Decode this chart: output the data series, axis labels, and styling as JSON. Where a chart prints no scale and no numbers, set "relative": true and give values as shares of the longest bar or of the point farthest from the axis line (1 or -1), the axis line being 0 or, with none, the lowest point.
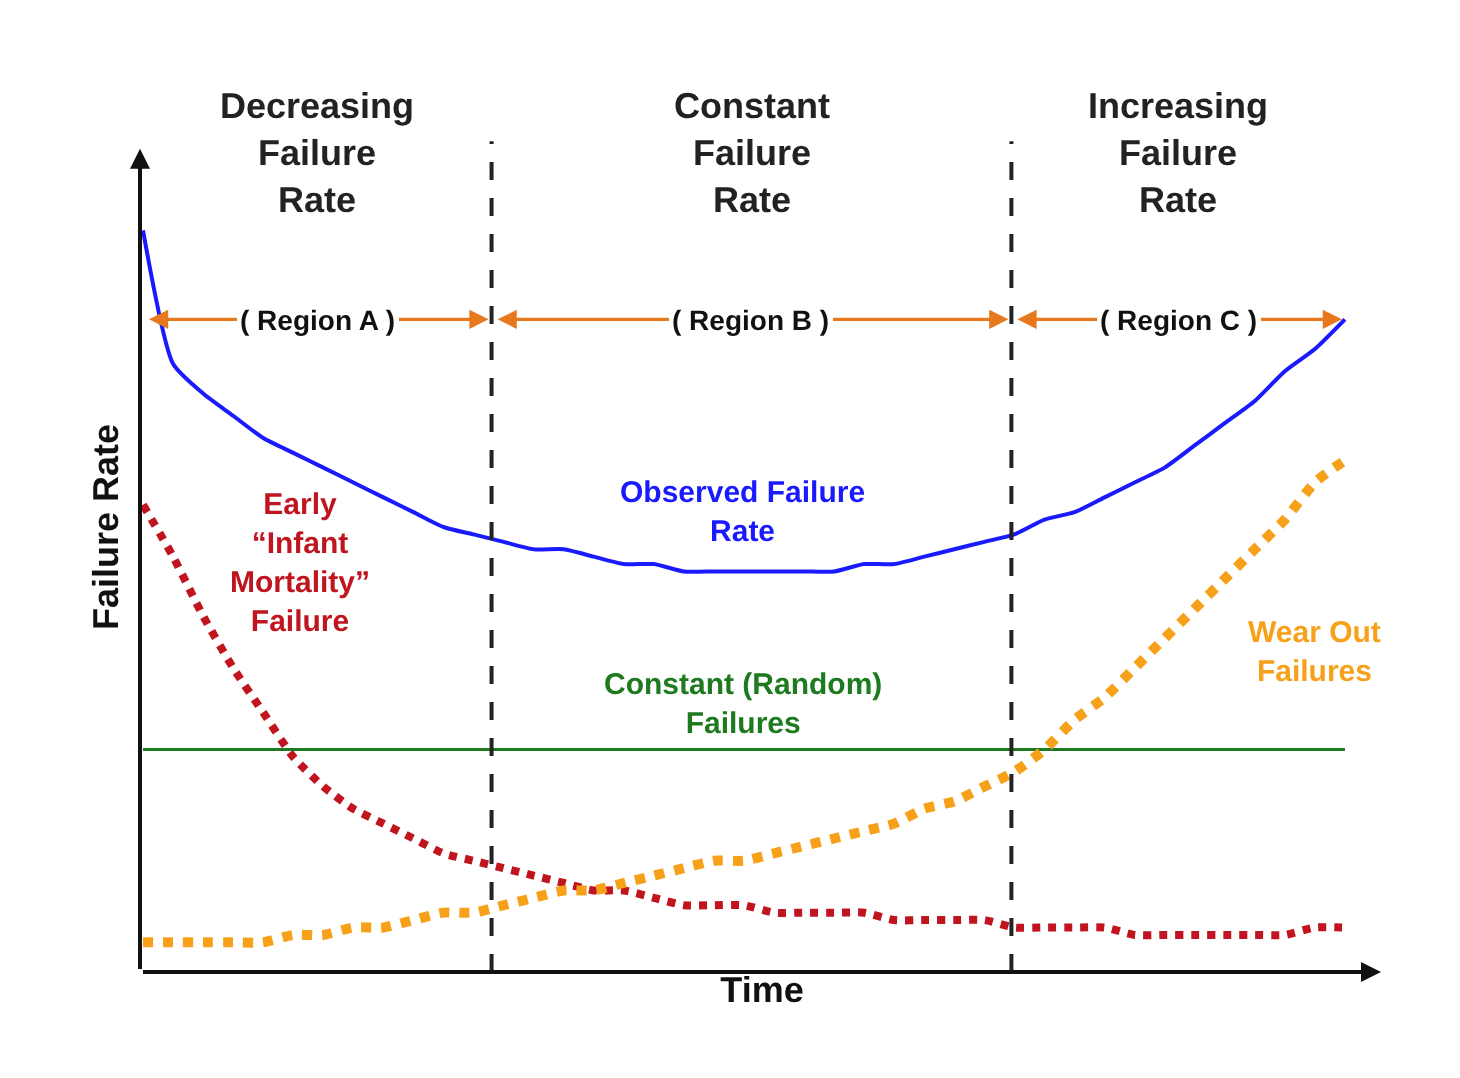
{
  "chart_data": {
    "type": "line",
    "relative": true,
    "xlabel": "Time",
    "ylabel": "Failure Rate",
    "categories": [
      null,
      null,
      null,
      null,
      null,
      null,
      null,
      null,
      null,
      null,
      null,
      null,
      null,
      null,
      null,
      null,
      null,
      null,
      null,
      null,
      null,
      null,
      null,
      null,
      null,
      null,
      null,
      null,
      null,
      null,
      null,
      null,
      null,
      null,
      null,
      null,
      null,
      null,
      null,
      null,
      null
    ],
    "series": [
      {
        "name": "Observed Failure\nRate",
        "color": "#1a1aff",
        "line_style": "solid",
        "values": [
          1.0,
          0.82,
          0.78,
          0.75,
          0.72,
          0.7,
          0.68,
          0.66,
          0.64,
          0.62,
          0.6,
          0.59,
          0.58,
          0.57,
          0.57,
          0.56,
          0.55,
          0.55,
          0.54,
          0.54,
          0.54,
          0.54,
          0.54,
          0.54,
          0.55,
          0.55,
          0.56,
          0.57,
          0.58,
          0.59,
          0.61,
          0.62,
          0.64,
          0.66,
          0.68,
          0.71,
          0.74,
          0.77,
          0.81,
          0.84,
          0.88
        ]
      },
      {
        "name": "Early\n“Infant\nMortality”\nFailure",
        "color": "#c0141e",
        "line_style": "dotted",
        "values": [
          0.63,
          0.56,
          0.48,
          0.41,
          0.35,
          0.29,
          0.25,
          0.22,
          0.2,
          0.18,
          0.16,
          0.15,
          0.14,
          0.13,
          0.12,
          0.11,
          0.11,
          0.1,
          0.09,
          0.09,
          0.09,
          0.08,
          0.08,
          0.08,
          0.08,
          0.07,
          0.07,
          0.07,
          0.07,
          0.06,
          0.06,
          0.06,
          0.06,
          0.05,
          0.05,
          0.05,
          0.05,
          0.05,
          0.05,
          0.06,
          0.06
        ]
      },
      {
        "name": "Constant (Random)\nFailures",
        "color": "#1e7a1e",
        "line_style": "solid",
        "values": [
          0.3,
          0.3,
          0.3,
          0.3,
          0.3,
          0.3,
          0.3,
          0.3,
          0.3,
          0.3,
          0.3,
          0.3,
          0.3,
          0.3,
          0.3,
          0.3,
          0.3,
          0.3,
          0.3,
          0.3,
          0.3,
          0.3,
          0.3,
          0.3,
          0.3,
          0.3,
          0.3,
          0.3,
          0.3,
          0.3,
          0.3,
          0.3,
          0.3,
          0.3,
          0.3,
          0.3,
          0.3,
          0.3,
          0.3,
          0.3,
          0.3
        ]
      },
      {
        "name": "Wear Out\nFailures",
        "color": "#f7a11a",
        "line_style": "dotted",
        "values": [
          0.04,
          0.04,
          0.04,
          0.04,
          0.04,
          0.05,
          0.05,
          0.06,
          0.06,
          0.07,
          0.08,
          0.08,
          0.09,
          0.1,
          0.11,
          0.11,
          0.12,
          0.13,
          0.14,
          0.15,
          0.15,
          0.16,
          0.17,
          0.18,
          0.19,
          0.2,
          0.22,
          0.23,
          0.25,
          0.27,
          0.3,
          0.34,
          0.37,
          0.41,
          0.45,
          0.49,
          0.53,
          0.57,
          0.61,
          0.66,
          0.69
        ]
      }
    ],
    "annotations": [
      "Decreasing\nFailure\nRate",
      "Constant\nFailure\nRate",
      "Increasing\nFailure\nRate",
      "( Region A )",
      "( Region B )",
      "( Region C )"
    ],
    "marker": "none",
    "legend": false
  }
}
